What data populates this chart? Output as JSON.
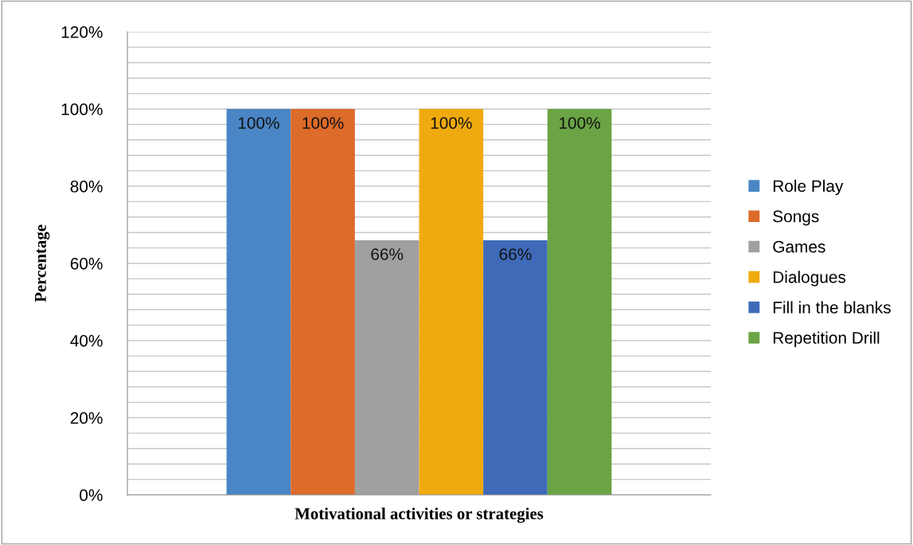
{
  "chart_data": {
    "type": "bar",
    "xlabel": "Motivational activities or strategies",
    "ylabel": "Percentage",
    "categories": [
      null
    ],
    "series": [
      {
        "name": "Role Play",
        "color": "#4a86c5",
        "values": [
          100
        ],
        "value_labels": [
          "100%"
        ]
      },
      {
        "name": "Songs",
        "color": "#dd6b2a",
        "values": [
          100
        ],
        "value_labels": [
          "100%"
        ]
      },
      {
        "name": "Games",
        "color": "#a0a0a0",
        "values": [
          66
        ],
        "value_labels": [
          "66%"
        ]
      },
      {
        "name": "Dialogues",
        "color": "#efaa0f",
        "values": [
          100
        ],
        "value_labels": [
          "100%"
        ]
      },
      {
        "name": "Fill in the blanks",
        "color": "#3e6ab8",
        "values": [
          66
        ],
        "value_labels": [
          "66%"
        ]
      },
      {
        "name": "Repetition Drill",
        "color": "#6aa444",
        "values": [
          100
        ],
        "value_labels": [
          "100%"
        ]
      }
    ],
    "ylim": [
      0,
      120
    ],
    "yticks": [
      {
        "value": 0,
        "label": "0%"
      },
      {
        "value": 4,
        "label": null
      },
      {
        "value": 8,
        "label": null
      },
      {
        "value": 12,
        "label": null
      },
      {
        "value": 16,
        "label": null
      },
      {
        "value": 20,
        "label": "20%"
      },
      {
        "value": 24,
        "label": null
      },
      {
        "value": 28,
        "label": null
      },
      {
        "value": 32,
        "label": null
      },
      {
        "value": 36,
        "label": null
      },
      {
        "value": 40,
        "label": "40%"
      },
      {
        "value": 44,
        "label": null
      },
      {
        "value": 48,
        "label": null
      },
      {
        "value": 52,
        "label": null
      },
      {
        "value": 56,
        "label": null
      },
      {
        "value": 60,
        "label": "60%"
      },
      {
        "value": 64,
        "label": null
      },
      {
        "value": 68,
        "label": null
      },
      {
        "value": 72,
        "label": null
      },
      {
        "value": 76,
        "label": null
      },
      {
        "value": 80,
        "label": "80%"
      },
      {
        "value": 84,
        "label": null
      },
      {
        "value": 88,
        "label": null
      },
      {
        "value": 92,
        "label": null
      },
      {
        "value": 96,
        "label": null
      },
      {
        "value": 100,
        "label": "100%"
      },
      {
        "value": 104,
        "label": null
      },
      {
        "value": 108,
        "label": null
      },
      {
        "value": 112,
        "label": null
      },
      {
        "value": 116,
        "label": null
      },
      {
        "value": 120,
        "label": "120%"
      }
    ],
    "grid": "y",
    "legend": "right"
  }
}
